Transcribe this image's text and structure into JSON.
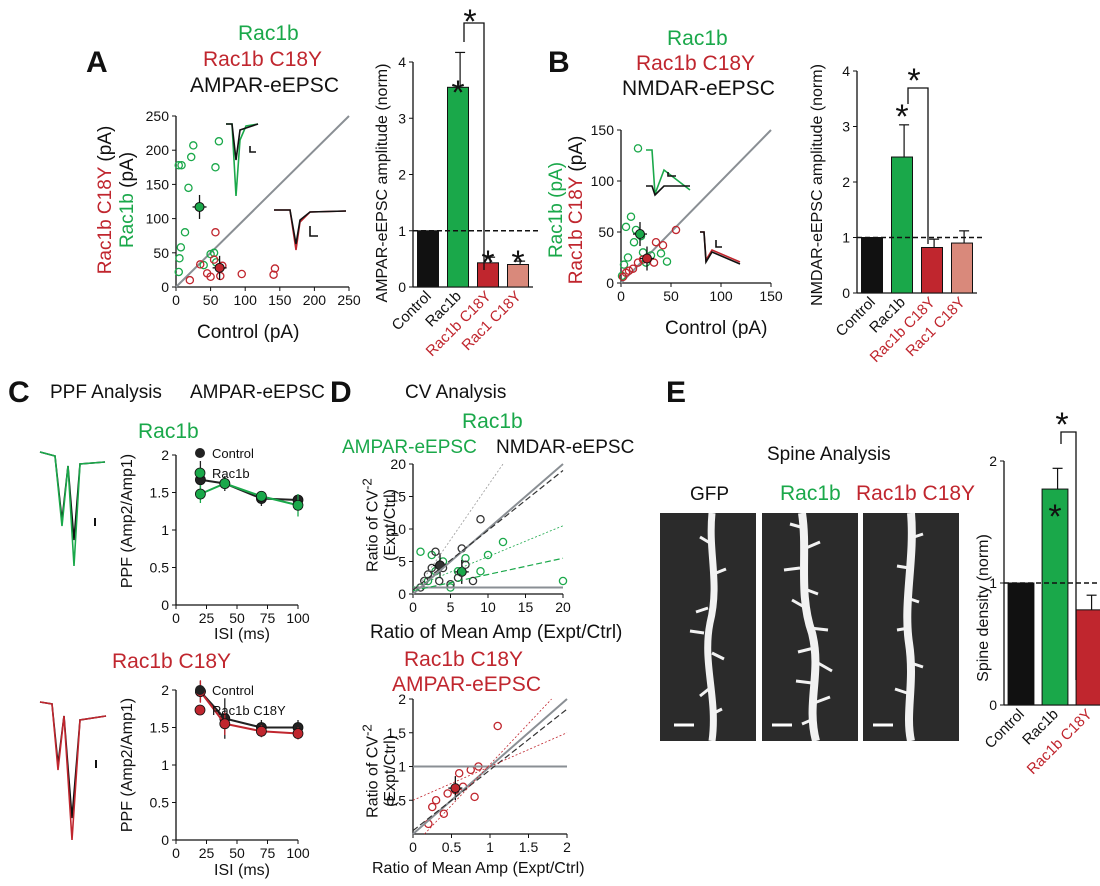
{
  "colors": {
    "green": "#1aa84a",
    "red": "#c0262e",
    "pink": "#d9897b",
    "black": "#111111",
    "gray": "#8a8f94"
  },
  "panel_labels": {
    "a": "A",
    "b": "B",
    "c": "C",
    "d": "D",
    "e": "E"
  },
  "panelA": {
    "title_rac1b": "Rac1b",
    "title_c18y": "Rac1b C18Y",
    "title_ampar": "AMPAR-eEPSC",
    "ylabel_rac1b": "Rac1b",
    "ylabel_c18y": "Rac1b C18Y",
    "ylabel_unit": "(pA)",
    "ylabel_unit2": "(pA)",
    "xlabel": "Control (pA)",
    "bar_ylabel": "AMPAR-eEPSC amplitude (norm)",
    "star": "*"
  },
  "panelB": {
    "title_rac1b": "Rac1b",
    "title_c18y": "Rac1b C18Y",
    "title_nmdar": "NMDAR-eEPSC",
    "ylabel_rac1b": "Rac1b (pA)",
    "ylabel_c18y": "Rac1b C18Y",
    "ylabel_unit": "(pA)",
    "xlabel": "Control (pA)",
    "bar_ylabel": "NMDAR-eEPSC amplitude (norm)"
  },
  "panelC": {
    "title_ppf": "PPF Analysis",
    "title_ampar": "AMPAR-eEPSC",
    "sub_rac1b": "Rac1b",
    "sub_c18y": "Rac1b C18Y",
    "ylabel": "PPF (Amp2/Amp1)",
    "xlabel": "ISI (ms)",
    "legend_control": "Control",
    "legend_rac1b": "Rac1b",
    "legend_c18y": "Rac1b C18Y"
  },
  "panelD": {
    "title": "CV Analysis",
    "sub_rac1b": "Rac1b",
    "sub_ampar": "AMPAR-eEPSC",
    "sub_nmdar": "NMDAR-eEPSC",
    "sub_c18y": "Rac1b C18Y",
    "sub_ampar2": "AMPAR-eEPSC",
    "ylabel_line1": "Ratio of CV",
    "ylabel_sup": "-2",
    "ylabel_line2": "(Expt/Ctrl)",
    "xlabel": "Ratio of Mean Amp (Expt/Ctrl)"
  },
  "panelE": {
    "title": "Spine Analysis",
    "img_gfp": "GFP",
    "img_rac1b": "Rac1b",
    "img_c18y": "Rac1b C18Y",
    "ylabel": "Spine density (norm)"
  },
  "chart_data": [
    {
      "id": "A-scatter",
      "type": "scatter",
      "title": "AMPAR-eEPSC",
      "xlabel": "Control (pA)",
      "ylabel": "Rac1b (pA) / Rac1b C18Y (pA)",
      "xlim": [
        0,
        250
      ],
      "ylim": [
        0,
        250
      ],
      "xticks": [
        0,
        50,
        100,
        150,
        200,
        250
      ],
      "yticks": [
        0,
        50,
        100,
        150,
        200,
        250
      ],
      "series": [
        {
          "name": "Rac1b",
          "points": [
            [
              4,
              22
            ],
            [
              5,
              42
            ],
            [
              7,
              58
            ],
            [
              4,
              178
            ],
            [
              8,
              178
            ],
            [
              13,
              80
            ],
            [
              18,
              145
            ],
            [
              22,
              190
            ],
            [
              25,
              207
            ],
            [
              40,
              32
            ],
            [
              50,
              48
            ],
            [
              55,
              50
            ],
            [
              58,
              36
            ],
            [
              57,
              175
            ],
            [
              62,
              213
            ]
          ],
          "mean": [
            34,
            117
          ]
        },
        {
          "name": "Rac1b C18Y",
          "points": [
            [
              20,
              10
            ],
            [
              35,
              33
            ],
            [
              45,
              20
            ],
            [
              55,
              40
            ],
            [
              57,
              80
            ],
            [
              50,
              15
            ],
            [
              64,
              16
            ],
            [
              67,
              31
            ],
            [
              95,
              19
            ],
            [
              143,
              27
            ],
            [
              141,
              18
            ]
          ],
          "mean": [
            63,
            28
          ]
        }
      ]
    },
    {
      "id": "A-bar",
      "type": "bar",
      "ylabel": "AMPAR-eEPSC amplitude (norm)",
      "ylim": [
        0,
        4
      ],
      "yticks": [
        0,
        1,
        2,
        3,
        4
      ],
      "categories": [
        "Control",
        "Rac1b",
        "Rac1b C18Y",
        "Rac1 C18Y"
      ],
      "values": [
        1.0,
        3.55,
        0.43,
        0.4
      ],
      "errors": [
        0,
        0.62,
        0.1,
        0.06
      ]
    },
    {
      "id": "B-scatter",
      "type": "scatter",
      "title": "NMDAR-eEPSC",
      "xlabel": "Control (pA)",
      "ylabel": "Rac1b (pA) / Rac1b C18Y (pA)",
      "xlim": [
        0,
        150
      ],
      "ylim": [
        0,
        150
      ],
      "xticks": [
        0,
        50,
        100,
        150
      ],
      "yticks": [
        0,
        50,
        100,
        150
      ],
      "series": [
        {
          "name": "Rac1b",
          "points": [
            [
              1,
              7
            ],
            [
              3,
              18
            ],
            [
              5,
              55
            ],
            [
              7,
              25
            ],
            [
              10,
              65
            ],
            [
              13,
              40
            ],
            [
              15,
              52
            ],
            [
              17,
              132
            ],
            [
              20,
              46
            ],
            [
              22,
              30
            ],
            [
              30,
              27
            ],
            [
              40,
              29
            ],
            [
              46,
              21
            ],
            [
              25,
              20
            ]
          ],
          "mean": [
            19,
            48
          ]
        },
        {
          "name": "Rac1b C18Y",
          "points": [
            [
              2,
              6
            ],
            [
              5,
              10
            ],
            [
              8,
              12
            ],
            [
              12,
              14
            ],
            [
              17,
              20
            ],
            [
              22,
              23
            ],
            [
              33,
              20
            ],
            [
              42,
              37
            ],
            [
              55,
              52
            ],
            [
              35,
              40
            ]
          ],
          "mean": [
            26,
            24
          ]
        }
      ]
    },
    {
      "id": "B-bar",
      "type": "bar",
      "ylabel": "NMDAR-eEPSC amplitude (norm)",
      "ylim": [
        0,
        4
      ],
      "yticks": [
        0,
        1,
        2,
        3,
        4
      ],
      "categories": [
        "Control",
        "Rac1b",
        "Rac1b C18Y",
        "Rac1 C18Y"
      ],
      "values": [
        1.0,
        2.45,
        0.82,
        0.9
      ],
      "errors": [
        0,
        0.58,
        0.15,
        0.22
      ]
    },
    {
      "id": "C-rac1b",
      "type": "line",
      "xlabel": "ISI (ms)",
      "ylabel": "PPF (Amp2/Amp1)",
      "xlim": [
        0,
        100
      ],
      "ylim": [
        0,
        2
      ],
      "xticks": [
        0,
        25,
        50,
        75,
        100
      ],
      "yticks": [
        0,
        0.5,
        1,
        1.5,
        2
      ],
      "x": [
        20,
        40,
        70,
        100
      ],
      "series": [
        {
          "name": "Control",
          "values": [
            1.67,
            1.62,
            1.42,
            1.4
          ],
          "errors": [
            0.25,
            0.1,
            0.1,
            0.07
          ]
        },
        {
          "name": "Rac1b",
          "values": [
            1.48,
            1.62,
            1.45,
            1.33
          ],
          "errors": [
            0.12,
            0.08,
            0.06,
            0.15
          ]
        }
      ]
    },
    {
      "id": "C-c18y",
      "type": "line",
      "xlabel": "ISI (ms)",
      "ylabel": "PPF (Amp2/Amp1)",
      "xlim": [
        0,
        100
      ],
      "ylim": [
        0,
        2
      ],
      "xticks": [
        0,
        25,
        50,
        75,
        100
      ],
      "yticks": [
        0,
        0.5,
        1,
        1.5,
        2
      ],
      "x": [
        20,
        40,
        70,
        100
      ],
      "series": [
        {
          "name": "Control",
          "values": [
            1.98,
            1.62,
            1.5,
            1.5
          ],
          "errors": [
            0.14,
            0.27,
            0.1,
            0.1
          ]
        },
        {
          "name": "Rac1b C18Y",
          "values": [
            1.98,
            1.55,
            1.45,
            1.42
          ],
          "errors": [
            0.15,
            0.15,
            0.08,
            0.08
          ]
        }
      ]
    },
    {
      "id": "D-top",
      "type": "scatter",
      "xlabel": "Ratio of Mean Amp (Expt/Ctrl)",
      "ylabel": "Ratio of CV -2 (Expt/Ctrl)",
      "xlim": [
        0,
        20
      ],
      "ylim": [
        0,
        20
      ],
      "xticks": [
        0,
        5,
        10,
        15,
        20
      ],
      "yticks": [
        0,
        5,
        10,
        15,
        20
      ],
      "series": [
        {
          "name": "Rac1b AMPAR",
          "points": [
            [
              1,
              6.5
            ],
            [
              2,
              2
            ],
            [
              2.5,
              6
            ],
            [
              3,
              3.5
            ],
            [
              4,
              5
            ],
            [
              5,
              1
            ],
            [
              6,
              3.5
            ],
            [
              7,
              5.5
            ],
            [
              9,
              3.5
            ],
            [
              10,
              6
            ],
            [
              12,
              8
            ],
            [
              20,
              2
            ]
          ],
          "mean": [
            6.5,
            3.4
          ]
        },
        {
          "name": "Rac1b NMDAR",
          "points": [
            [
              1,
              1
            ],
            [
              1.5,
              2
            ],
            [
              2,
              3
            ],
            [
              2.5,
              4
            ],
            [
              3,
              6.5
            ],
            [
              3.5,
              2
            ],
            [
              4,
              4
            ],
            [
              5,
              1.5
            ],
            [
              6,
              2.5
            ],
            [
              7,
              4.5
            ],
            [
              8,
              2
            ],
            [
              9,
              11.5
            ],
            [
              6.5,
              7
            ]
          ],
          "mean": [
            3.6,
            4.4
          ]
        }
      ]
    },
    {
      "id": "D-bottom",
      "type": "scatter",
      "xlabel": "Ratio of Mean Amp (Expt/Ctrl)",
      "ylabel": "Ratio of CV -2 (Expt/Ctrl)",
      "xlim": [
        0,
        2
      ],
      "ylim": [
        0,
        2
      ],
      "xticks": [
        0,
        0.5,
        1,
        1.5,
        2
      ],
      "yticks": [
        0.5,
        1,
        1.5,
        2
      ],
      "series": [
        {
          "name": "Rac1b C18Y AMPAR",
          "points": [
            [
              0.2,
              0.15
            ],
            [
              0.25,
              0.4
            ],
            [
              0.3,
              0.5
            ],
            [
              0.4,
              0.3
            ],
            [
              0.45,
              0.6
            ],
            [
              0.55,
              0.65
            ],
            [
              0.6,
              0.9
            ],
            [
              0.65,
              0.7
            ],
            [
              0.75,
              0.95
            ],
            [
              0.8,
              0.55
            ],
            [
              0.85,
              1.0
            ],
            [
              1.1,
              1.6
            ]
          ],
          "mean": [
            0.55,
            0.68
          ]
        }
      ]
    },
    {
      "id": "E-bar",
      "type": "bar",
      "ylabel": "Spine density (norm)",
      "ylim": [
        0,
        2
      ],
      "yticks": [
        0,
        1,
        2
      ],
      "categories": [
        "Control",
        "Rac1b",
        "Rac1b C18Y"
      ],
      "values": [
        1.0,
        1.77,
        0.78
      ],
      "errors": [
        0,
        0.17,
        0.12
      ]
    }
  ]
}
